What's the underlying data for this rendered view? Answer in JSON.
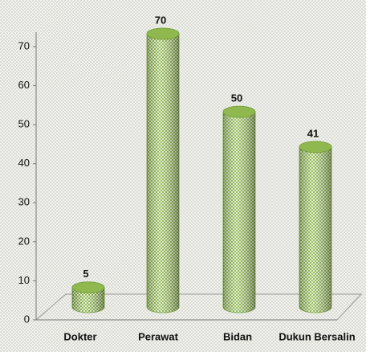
{
  "chart_data": {
    "type": "bar",
    "categories": [
      "Dokter",
      "Perawat",
      "Bidan",
      "Dukun Bersalin"
    ],
    "values": [
      5,
      70,
      50,
      41
    ],
    "color": "#9bc25a",
    "ylim": [
      0,
      70
    ],
    "yticks": [
      0,
      10,
      20,
      30,
      40,
      50,
      60,
      70
    ]
  }
}
